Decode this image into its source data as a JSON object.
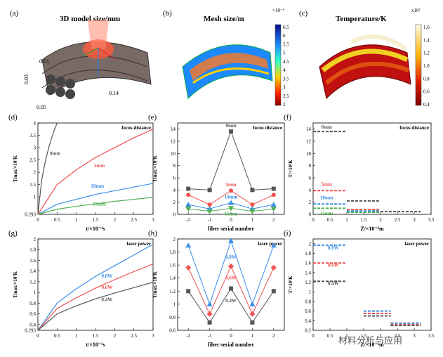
{
  "panel_a": {
    "label": "(a)",
    "title": "3D model size/mm",
    "dims": [
      "0.01",
      "0.03",
      "0.05",
      "0.14"
    ]
  },
  "panel_b": {
    "label": "(b)",
    "title": "Mesh size/m",
    "exponent": "×10⁻⁶",
    "ticks": [
      "6.5",
      "6",
      "5.5",
      "5",
      "4.5",
      "4",
      "3.5",
      "3",
      "2.5",
      "2"
    ]
  },
  "panel_c": {
    "label": "(c)",
    "title": "Temperature/K",
    "exponent": "x10³",
    "ticks": [
      "1.6",
      "1.4",
      "1.2",
      "1.0",
      "0.8",
      "0.6",
      "0.4"
    ]
  },
  "colors": {
    "black": "#555555",
    "red": "#f05050",
    "blue": "#3a8ee8",
    "green": "#4caf50"
  },
  "chart_data": [
    {
      "panel": "(d)",
      "type": "line",
      "annotation": "focus distance",
      "xlabel": "t/×10⁻³s",
      "ylabel": "Tmax/×10³K",
      "xlim": [
        0,
        3
      ],
      "ylim": [
        0.293,
        4
      ],
      "xticks": [
        "0",
        "0.5",
        "1",
        "1.5",
        "2",
        "2.5",
        "3"
      ],
      "yticks": [
        "0.293",
        "1",
        "1.5",
        "2",
        "2.5",
        "3",
        "3.5",
        "4"
      ],
      "series": [
        {
          "name": "0mm",
          "color": "black",
          "x": [
            0,
            0.1,
            0.2,
            0.3,
            0.4,
            0.5
          ],
          "y": [
            0.293,
            1.7,
            2.5,
            3.1,
            3.6,
            4.0
          ]
        },
        {
          "name": "5mm",
          "color": "red",
          "x": [
            0,
            0.5,
            1,
            1.5,
            2,
            2.5,
            3
          ],
          "y": [
            0.293,
            1.5,
            2.1,
            2.6,
            3.0,
            3.4,
            3.75
          ]
        },
        {
          "name": "10mm",
          "color": "blue",
          "x": [
            0,
            0.5,
            1,
            1.5,
            2,
            2.5,
            3
          ],
          "y": [
            0.293,
            0.7,
            0.9,
            1.1,
            1.25,
            1.4,
            1.55
          ]
        },
        {
          "name": "15mm",
          "color": "green",
          "x": [
            0,
            0.5,
            1,
            1.5,
            2,
            2.5,
            3
          ],
          "y": [
            0.293,
            0.5,
            0.62,
            0.72,
            0.82,
            0.9,
            0.98
          ]
        }
      ],
      "labels": [
        {
          "text": "0mm",
          "x": 0.45,
          "y": 2.7,
          "color": "black"
        },
        {
          "text": "5mm",
          "x": 1.6,
          "y": 2.2,
          "color": "red"
        },
        {
          "text": "10mm",
          "x": 1.55,
          "y": 1.38,
          "color": "blue"
        },
        {
          "text": "15mm",
          "x": 1.6,
          "y": 0.65,
          "color": "green"
        }
      ]
    },
    {
      "panel": "(e)",
      "type": "line",
      "annotation": "focus distance",
      "xlabel": "fiber serial number",
      "ylabel": "Tmax/×10³K",
      "xlim": [
        -2.5,
        2.5
      ],
      "ylim": [
        0,
        15
      ],
      "xticks": [
        "-2",
        "-1",
        "0",
        "1",
        "2"
      ],
      "yticks": [
        "0",
        "2",
        "4",
        "6",
        "8",
        "10",
        "12",
        "14"
      ],
      "x": [
        -2,
        -1,
        0,
        1,
        2
      ],
      "series": [
        {
          "name": "0mm",
          "color": "black",
          "marker": "square",
          "values": [
            4.2,
            4.0,
            13.6,
            4.0,
            4.2
          ]
        },
        {
          "name": "5mm",
          "color": "red",
          "marker": "circle",
          "values": [
            3.2,
            1.6,
            3.9,
            1.6,
            3.2
          ]
        },
        {
          "name": "10mm",
          "color": "blue",
          "marker": "triangle",
          "values": [
            1.6,
            0.9,
            1.9,
            0.9,
            1.6
          ]
        },
        {
          "name": "15mm",
          "color": "green",
          "marker": "tri-down",
          "values": [
            0.9,
            0.5,
            1.0,
            0.5,
            0.9
          ]
        }
      ],
      "labels": [
        {
          "text": "0mm",
          "x": 0,
          "y": 14.3,
          "color": "black"
        },
        {
          "text": "5mm",
          "x": 0,
          "y": 4.6,
          "color": "red"
        },
        {
          "text": "10mm",
          "x": 0,
          "y": 2.6,
          "color": "blue"
        },
        {
          "text": "15mm",
          "x": 0,
          "y": -0.2,
          "color": "green"
        }
      ]
    },
    {
      "panel": "(f)",
      "type": "segments",
      "annotation": "focus distance",
      "xlabel": "Z/×10⁻⁶m",
      "ylabel": "T/×10³K",
      "xlim": [
        0,
        3.5
      ],
      "ylim": [
        0,
        15
      ],
      "xticks": [
        "0",
        "0.5",
        "1",
        "1.5",
        "2",
        "2.5",
        "3",
        "3.5"
      ],
      "yticks": [
        "0",
        "2",
        "4",
        "6",
        "8",
        "10",
        "12",
        "14"
      ],
      "series": [
        {
          "name": "0mm",
          "color": "black",
          "segments": [
            [
              0,
              1,
              13.6
            ],
            [
              1,
              2,
              2.2
            ],
            [
              2,
              3.2,
              0.45
            ]
          ]
        },
        {
          "name": "5mm",
          "color": "red",
          "segments": [
            [
              0,
              1,
              3.9
            ],
            [
              1,
              2,
              0.8
            ]
          ]
        },
        {
          "name": "10mm",
          "color": "blue",
          "segments": [
            [
              0,
              1,
              1.7
            ],
            [
              1,
              2,
              0.55
            ]
          ]
        },
        {
          "name": "15mm",
          "color": "green",
          "segments": [
            [
              0,
              1,
              1.0
            ],
            [
              1,
              2,
              0.35
            ]
          ]
        }
      ],
      "labels": [
        {
          "text": "0mm",
          "x": 0.4,
          "y": 14.1,
          "color": "black"
        },
        {
          "text": "5mm",
          "x": 0.4,
          "y": 4.7,
          "color": "red"
        },
        {
          "text": "10mm",
          "x": 0.4,
          "y": 2.5,
          "color": "blue"
        },
        {
          "text": "15mm",
          "x": 0.4,
          "y": -0.1,
          "color": "green"
        }
      ]
    },
    {
      "panel": "(g)",
      "type": "line",
      "annotation": "laser power",
      "xlabel": "t/×10⁻³s",
      "ylabel": "Tmax/×10³K",
      "xlim": [
        0,
        3
      ],
      "ylim": [
        0.293,
        2
      ],
      "xticks": [
        "0",
        "0.5",
        "1",
        "1.5",
        "2",
        "2.5",
        "3"
      ],
      "yticks": [
        "0.293",
        "0.4",
        "0.6",
        "0.8",
        "1",
        "1.2",
        "1.4",
        "1.6",
        "1.8",
        "2"
      ],
      "series": [
        {
          "name": "0.8W",
          "color": "blue",
          "x": [
            0,
            0.5,
            1,
            1.5,
            2,
            2.5,
            3
          ],
          "y": [
            0.293,
            0.8,
            1.07,
            1.3,
            1.5,
            1.7,
            1.9
          ]
        },
        {
          "name": "0.6W",
          "color": "red",
          "x": [
            0,
            0.5,
            1,
            1.5,
            2,
            2.5,
            3
          ],
          "y": [
            0.293,
            0.7,
            0.9,
            1.08,
            1.24,
            1.39,
            1.53
          ]
        },
        {
          "name": "0.4W",
          "color": "black",
          "x": [
            0,
            0.5,
            1,
            1.5,
            2,
            2.5,
            3
          ],
          "y": [
            0.293,
            0.6,
            0.75,
            0.88,
            0.99,
            1.09,
            1.19
          ]
        }
      ],
      "labels": [
        {
          "text": "0.8W",
          "x": 1.8,
          "y": 1.28,
          "color": "blue"
        },
        {
          "text": "0.6W",
          "x": 1.8,
          "y": 1.07,
          "color": "red"
        },
        {
          "text": "0.4W",
          "x": 1.8,
          "y": 0.84,
          "color": "black"
        }
      ]
    },
    {
      "panel": "(h)",
      "type": "line",
      "annotation": "laser power",
      "xlabel": "fiber serial number",
      "ylabel": "Tmax/×10³K",
      "xlim": [
        -2.5,
        2.5
      ],
      "ylim": [
        0.6,
        2
      ],
      "xticks": [
        "-2",
        "-1",
        "0",
        "1",
        "2"
      ],
      "yticks": [
        "0.6",
        "0.8",
        "1",
        "1.2",
        "1.4",
        "1.6",
        "1.8",
        "2"
      ],
      "x": [
        -2,
        -1,
        0,
        1,
        2
      ],
      "series": [
        {
          "name": "0.8W",
          "color": "blue",
          "marker": "triangle",
          "values": [
            1.9,
            1.0,
            1.97,
            1.0,
            1.9
          ]
        },
        {
          "name": "0.6W",
          "color": "red",
          "marker": "diamond",
          "values": [
            1.56,
            0.85,
            1.58,
            0.85,
            1.56
          ]
        },
        {
          "name": "0.4W",
          "color": "black",
          "marker": "square",
          "values": [
            1.2,
            0.72,
            1.24,
            0.72,
            1.2
          ]
        }
      ],
      "labels": [
        {
          "text": "0.8W",
          "x": 0,
          "y": 1.7,
          "color": "blue"
        },
        {
          "text": "0.6W",
          "x": 0,
          "y": 1.38,
          "color": "red"
        },
        {
          "text": "0.4W",
          "x": 0,
          "y": 1.03,
          "color": "black"
        }
      ]
    },
    {
      "panel": "(i)",
      "type": "segments",
      "annotation": "laser power",
      "xlabel": "Z/×10⁻⁶m",
      "ylabel": "T/×10³K",
      "xlim": [
        0,
        3.5
      ],
      "ylim": [
        0.2,
        2.1
      ],
      "xticks": [
        "0",
        "0.5",
        "1",
        "1.5",
        "2",
        "2.5",
        "3",
        "3.5"
      ],
      "yticks": [
        "0.2",
        "0.4",
        "0.6",
        "0.8",
        "1",
        "1.2",
        "1.4",
        "1.6",
        "1.8",
        "2"
      ],
      "series": [
        {
          "name": "0.8W",
          "color": "blue",
          "segments": [
            [
              0,
              1,
              1.97
            ],
            [
              1.5,
              2.3,
              0.6
            ],
            [
              2.3,
              3.2,
              0.35
            ]
          ]
        },
        {
          "name": "0.6W",
          "color": "red",
          "segments": [
            [
              0,
              1,
              1.6
            ],
            [
              1.5,
              2.3,
              0.55
            ],
            [
              2.3,
              3.2,
              0.32
            ]
          ]
        },
        {
          "name": "0.4W",
          "color": "black",
          "segments": [
            [
              0,
              1,
              1.22
            ],
            [
              1.5,
              2.3,
              0.5
            ],
            [
              2.3,
              3.2,
              0.3
            ]
          ]
        }
      ],
      "labels": [
        {
          "text": "0.8W",
          "x": 0.6,
          "y": 1.88,
          "color": "blue"
        },
        {
          "text": "0.6W",
          "x": 0.6,
          "y": 1.52,
          "color": "red"
        },
        {
          "text": "0.4W",
          "x": 0.6,
          "y": 1.14,
          "color": "black"
        }
      ]
    }
  ],
  "watermark": "材料分析与应用"
}
